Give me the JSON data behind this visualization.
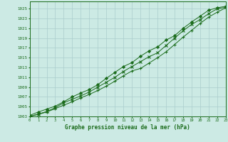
{
  "x": [
    0,
    1,
    2,
    3,
    4,
    5,
    6,
    7,
    8,
    9,
    10,
    11,
    12,
    13,
    14,
    15,
    16,
    17,
    18,
    19,
    20,
    21,
    22,
    23
  ],
  "line1": [
    1003.2,
    1003.9,
    1004.5,
    1005.1,
    1006.0,
    1007.0,
    1007.8,
    1008.5,
    1009.5,
    1010.8,
    1012.0,
    1013.2,
    1014.0,
    1015.3,
    1016.4,
    1017.2,
    1018.6,
    1019.5,
    1021.0,
    1022.3,
    1023.5,
    1024.7,
    1025.2,
    1025.5
  ],
  "line2": [
    1003.0,
    1003.5,
    1004.0,
    1004.8,
    1005.8,
    1006.5,
    1007.2,
    1008.0,
    1009.0,
    1010.0,
    1011.0,
    1012.2,
    1013.2,
    1014.2,
    1015.2,
    1016.0,
    1017.5,
    1019.0,
    1020.5,
    1021.8,
    1022.8,
    1024.0,
    1025.0,
    1025.3
  ],
  "line3": [
    1003.0,
    1003.4,
    1003.9,
    1004.6,
    1005.3,
    1006.0,
    1006.8,
    1007.5,
    1008.3,
    1009.2,
    1010.2,
    1011.3,
    1012.3,
    1012.8,
    1013.9,
    1015.0,
    1016.2,
    1017.7,
    1019.2,
    1020.6,
    1022.0,
    1023.3,
    1024.3,
    1025.2
  ],
  "line_color": "#1a6b1a",
  "bg_color": "#cceae4",
  "grid_color": "#aacccc",
  "xlabel": "Graphe pression niveau de la mer (hPa)",
  "ylim_min": 1003,
  "ylim_max": 1026,
  "xlim_min": 0,
  "xlim_max": 23,
  "ytick_step": 2,
  "marker1": "D",
  "marker2": "x",
  "marker3": "+"
}
